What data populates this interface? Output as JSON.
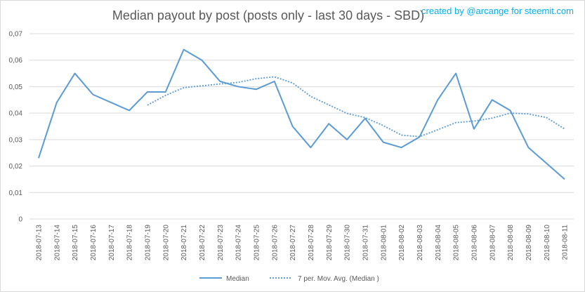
{
  "chart_data": {
    "type": "line",
    "title": "Median payout by post (posts only - last 30 days - SBD)",
    "credit": "created by @arcange for steemit.com",
    "xlabel": "",
    "ylabel": "",
    "ylim": [
      0,
      0.07
    ],
    "yticks": [
      "0",
      "0,01",
      "0,02",
      "0,03",
      "0,04",
      "0,05",
      "0,06",
      "0,07"
    ],
    "grid": true,
    "legend_position": "bottom",
    "categories": [
      "2018-07-13",
      "2018-07-14",
      "2018-07-15",
      "2018-07-16",
      "2018-07-17",
      "2018-07-18",
      "2018-07-19",
      "2018-07-20",
      "2018-07-21",
      "2018-07-22",
      "2018-07-23",
      "2018-07-24",
      "2018-07-25",
      "2018-07-26",
      "2018-07-27",
      "2018-07-28",
      "2018-07-29",
      "2018-07-30",
      "2018-07-31",
      "2018-08-01",
      "2018-08-02",
      "2018-08-03",
      "2018-08-04",
      "2018-08-05",
      "2018-08-06",
      "2018-08-07",
      "2018-08-08",
      "2018-08-09",
      "2018-08-10",
      "2018-08-11"
    ],
    "series": [
      {
        "name": "Median",
        "style": "solid",
        "color": "#5b9bd5",
        "values": [
          0.023,
          0.044,
          0.055,
          0.047,
          0.044,
          0.041,
          0.048,
          0.048,
          0.064,
          0.06,
          0.052,
          0.05,
          0.049,
          0.052,
          0.035,
          0.027,
          0.036,
          0.03,
          0.038,
          0.029,
          0.027,
          0.031,
          0.045,
          0.055,
          0.034,
          0.045,
          0.041,
          0.027,
          0.021,
          0.015
        ]
      },
      {
        "name": "7 per. Mov. Avg. (Median )",
        "style": "dotted",
        "color": "#5b9bd5",
        "values": [
          null,
          null,
          null,
          null,
          null,
          null,
          0.043,
          0.0467,
          0.0496,
          0.0503,
          0.051,
          0.0516,
          0.053,
          0.0537,
          0.0514,
          0.0463,
          0.0431,
          0.0399,
          0.0383,
          0.0353,
          0.0317,
          0.0311,
          0.0337,
          0.0364,
          0.037,
          0.0381,
          0.04,
          0.0397,
          0.0383,
          0.034
        ]
      }
    ]
  }
}
